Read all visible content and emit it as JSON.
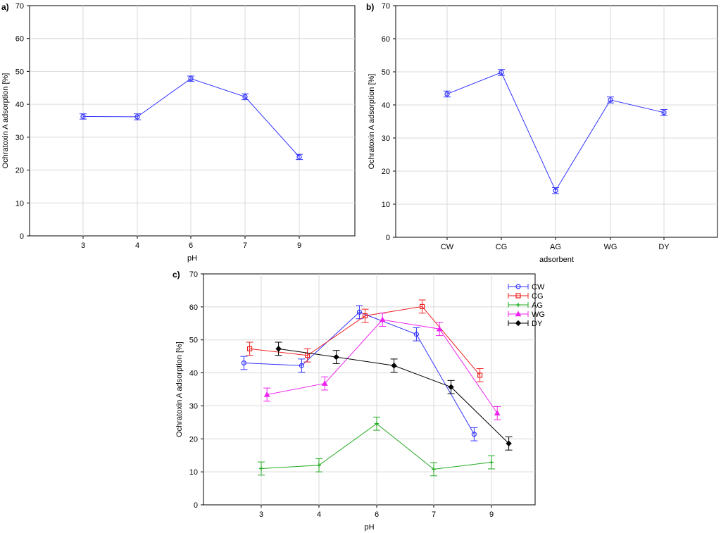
{
  "chart_data": [
    {
      "type": "line",
      "panel_label": "a)",
      "xlabel": "pH",
      "ylabel": "Ochratoxin A adsorption [%]",
      "categories": [
        "3",
        "4",
        "6",
        "7",
        "9"
      ],
      "ylim": [
        0,
        70
      ],
      "yticks": [
        "0",
        "10",
        "20",
        "30",
        "40",
        "50",
        "60",
        "70"
      ],
      "grid": true,
      "series": [
        {
          "values": [
            36.3,
            36.2,
            47.8,
            42.3,
            24.0
          ],
          "errors": [
            0.8,
            0.9,
            0.8,
            0.9,
            0.8
          ],
          "color": "#3333ff",
          "marker": "circle"
        }
      ]
    },
    {
      "type": "line",
      "panel_label": "b)",
      "xlabel": "adsorbent",
      "ylabel": "Ochratoxin A adsorption [%]",
      "categories": [
        "CW",
        "CG",
        "AG",
        "WG",
        "DY"
      ],
      "ylim": [
        0,
        70
      ],
      "yticks": [
        "0",
        "10",
        "20",
        "30",
        "40",
        "50",
        "60",
        "70"
      ],
      "grid": true,
      "series": [
        {
          "values": [
            43.3,
            49.8,
            14.1,
            41.5,
            37.7
          ],
          "errors": [
            0.9,
            0.9,
            0.9,
            0.9,
            0.9
          ],
          "color": "#3333ff",
          "marker": "circle"
        }
      ]
    },
    {
      "type": "line",
      "panel_label": "c)",
      "xlabel": "pH",
      "ylabel": "Ochratoxin A adsorption [%]",
      "categories": [
        "3",
        "4",
        "6",
        "7",
        "9"
      ],
      "ylim": [
        0,
        70
      ],
      "yticks": [
        "0",
        "10",
        "20",
        "30",
        "40",
        "50",
        "60",
        "70"
      ],
      "grid": true,
      "legend_position": "top-right",
      "series": [
        {
          "name": "CW",
          "values": [
            43.0,
            42.2,
            58.4,
            51.7,
            21.4
          ],
          "errors": [
            2.0,
            2.0,
            2.0,
            2.0,
            2.0
          ],
          "offset": -0.3,
          "color": "#3333ff",
          "marker": "circle"
        },
        {
          "name": "CG",
          "values": [
            47.3,
            45.3,
            57.3,
            60.1,
            39.3
          ],
          "errors": [
            2.0,
            2.0,
            2.0,
            2.0,
            2.0
          ],
          "offset": -0.2,
          "color": "#ee2222",
          "marker": "square"
        },
        {
          "name": "AG",
          "values": [
            11.0,
            12.0,
            24.6,
            10.8,
            12.9
          ],
          "errors": [
            2.0,
            2.0,
            2.0,
            2.0,
            2.0
          ],
          "offset": 0.0,
          "color": "#22aa22",
          "marker": "plus"
        },
        {
          "name": "WG",
          "values": [
            33.4,
            36.8,
            56.1,
            53.3,
            27.8
          ],
          "errors": [
            2.0,
            2.0,
            2.0,
            2.0,
            2.0
          ],
          "offset": 0.1,
          "color": "#ee22ee",
          "marker": "triangle"
        },
        {
          "name": "DY",
          "values": [
            47.3,
            44.8,
            42.2,
            35.7,
            18.6
          ],
          "errors": [
            2.0,
            2.0,
            2.0,
            2.0,
            2.0
          ],
          "offset": 0.3,
          "color": "#000000",
          "marker": "diamond"
        }
      ]
    }
  ]
}
